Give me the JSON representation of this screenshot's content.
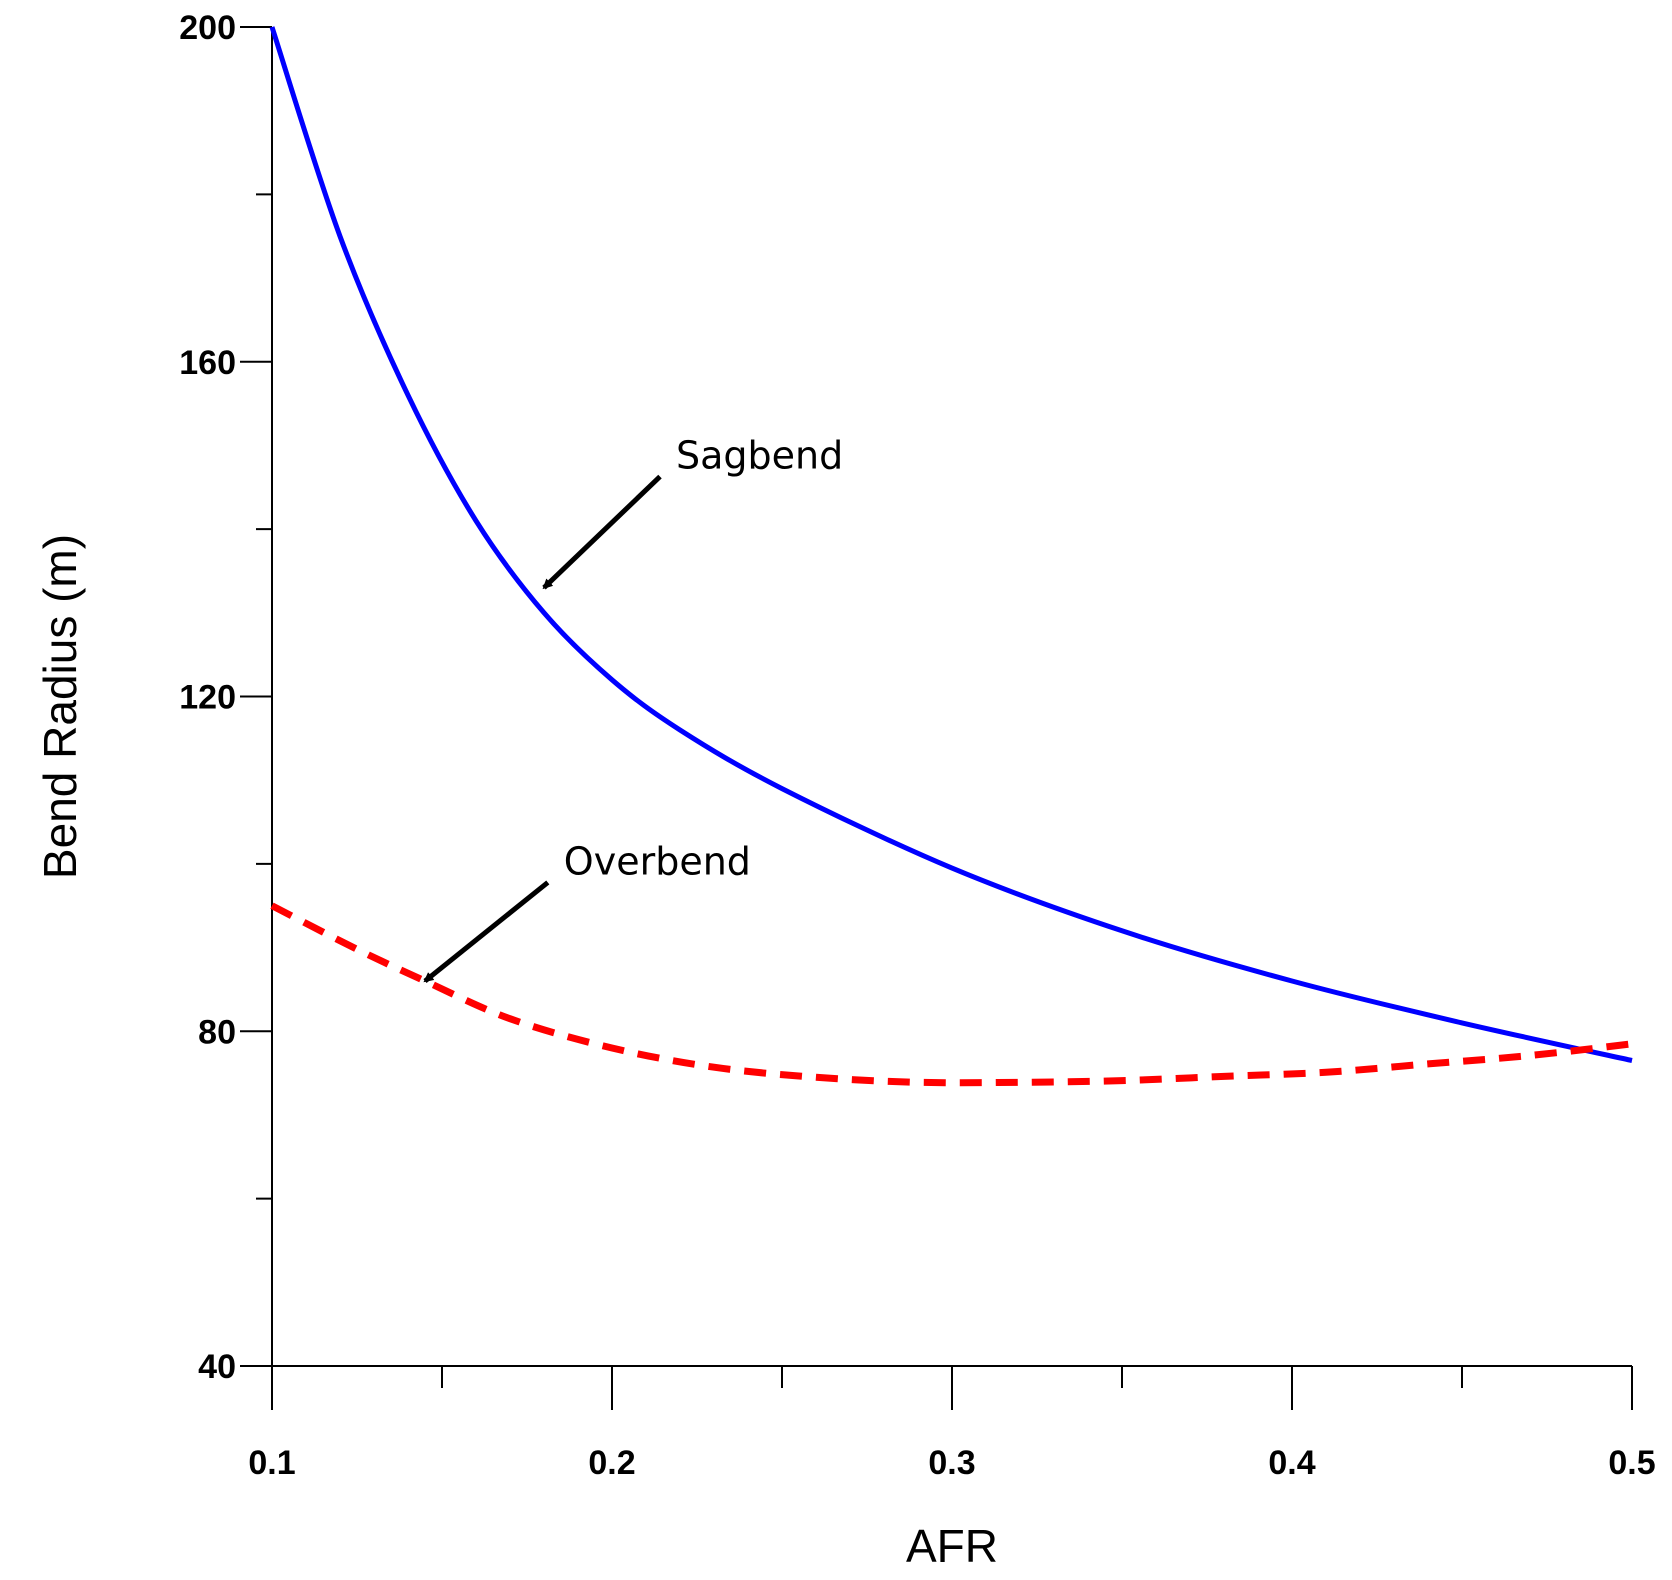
{
  "chart_data": {
    "type": "line",
    "title": "",
    "xlabel": "AFR",
    "ylabel": "Bend Radius (m)",
    "xlim": [
      0.1,
      0.5
    ],
    "ylim": [
      40,
      200
    ],
    "x_ticks": [
      0.1,
      0.2,
      0.3,
      0.4,
      0.5
    ],
    "x_tick_labels": [
      "0.1",
      "0.2",
      "0.3",
      "0.4",
      "0.5"
    ],
    "x_minor_ticks": [
      0.15,
      0.25,
      0.35,
      0.45
    ],
    "y_ticks": [
      40,
      80,
      120,
      160,
      200
    ],
    "y_tick_labels": [
      "40",
      "80",
      "120",
      "160",
      "200"
    ],
    "y_minor_ticks": [
      60,
      100,
      140,
      180
    ],
    "grid": false,
    "series": [
      {
        "name": "Sagbend",
        "color": "#0000ff",
        "style": "solid",
        "x": [
          0.1,
          0.12,
          0.14,
          0.16,
          0.18,
          0.2,
          0.22,
          0.25,
          0.3,
          0.35,
          0.4,
          0.45,
          0.5
        ],
        "y": [
          200,
          175,
          156,
          141,
          130,
          122,
          116,
          109,
          99.5,
          92,
          86,
          81,
          76.5
        ]
      },
      {
        "name": "Overbend",
        "color": "#ff0000",
        "style": "dashed",
        "x": [
          0.1,
          0.125,
          0.145,
          0.17,
          0.2,
          0.23,
          0.26,
          0.29,
          0.32,
          0.35,
          0.38,
          0.41,
          0.44,
          0.47,
          0.5
        ],
        "y": [
          95,
          89.8,
          86,
          81.5,
          78,
          75.7,
          74.5,
          73.9,
          73.9,
          74.1,
          74.6,
          75.1,
          76.1,
          77.1,
          78.5
        ]
      }
    ],
    "annotations": [
      {
        "text": "Sagbend",
        "x": 0.22,
        "y": 147,
        "arrow_to": [
          0.18,
          133
        ]
      },
      {
        "text": "Overbend",
        "x": 0.187,
        "y": 98.5,
        "arrow_to": [
          0.145,
          86
        ]
      }
    ]
  }
}
